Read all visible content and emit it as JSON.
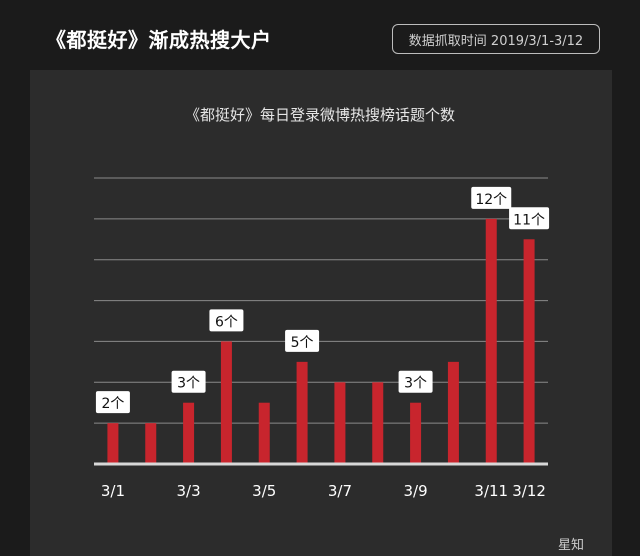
{
  "header": {
    "title": "《都挺好》渐成热搜大户",
    "date_range": "数据抓取时间 2019/3/1-3/12"
  },
  "footer": {
    "mark": "星知"
  },
  "colors": {
    "bar": "#c8252d",
    "background": "#2c2c2c"
  },
  "chart_data": {
    "type": "bar",
    "title": "《都挺好》每日登录微博热搜榜话题个数",
    "xlabel": "",
    "ylabel": "",
    "grid": true,
    "ylim": [
      0,
      14
    ],
    "categories": [
      "3/1",
      "3/2",
      "3/3",
      "3/4",
      "3/5",
      "3/6",
      "3/7",
      "3/8",
      "3/9",
      "3/10",
      "3/11",
      "3/12"
    ],
    "tick_labels": [
      "3/1",
      "",
      "3/3",
      "",
      "3/5",
      "",
      "3/7",
      "",
      "3/9",
      "",
      "3/11",
      "3/12"
    ],
    "values": [
      2,
      2,
      3,
      6,
      3,
      5,
      4,
      4,
      3,
      5,
      12,
      11
    ],
    "data_labels": [
      "2个",
      "",
      "3个",
      "6个",
      "",
      "5个",
      "",
      "",
      "3个",
      "",
      "12个",
      "11个"
    ]
  }
}
